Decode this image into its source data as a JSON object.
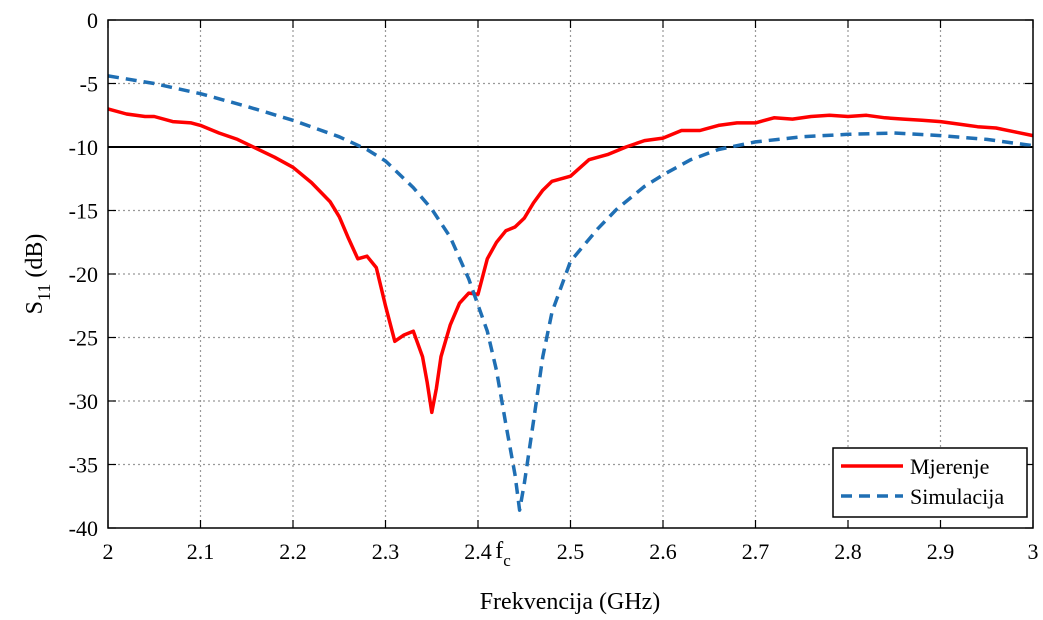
{
  "chart_data": {
    "type": "line",
    "title": "",
    "xlabel": "Frekvencija (GHz)",
    "ylabel_main": "S",
    "ylabel_sub": "11",
    "ylabel_unit": " (dB)",
    "xlim": [
      2,
      3
    ],
    "ylim": [
      -40,
      0
    ],
    "x_ticks": [
      2,
      2.1,
      2.2,
      2.3,
      2.4,
      2.5,
      2.6,
      2.7,
      2.8,
      2.9,
      3
    ],
    "x_tick_labels": [
      "2",
      "2.1",
      "2.2",
      "2.3",
      "2.4",
      "2.5",
      "2.6",
      "2.7",
      "2.8",
      "2.9",
      "3"
    ],
    "y_ticks": [
      0,
      -5,
      -10,
      -15,
      -20,
      -25,
      -30,
      -35,
      -40
    ],
    "y_tick_labels": [
      "0",
      "-5",
      "-10",
      "-15",
      "-20",
      "-25",
      "-30",
      "-35",
      "-40"
    ],
    "grid": true,
    "reference_line": {
      "y": -10,
      "color": "#000000"
    },
    "annotation": {
      "x": 2.445,
      "text_main": "f",
      "text_sub": "c"
    },
    "legend_position": "bottom-right",
    "series": [
      {
        "name": "Mjerenje",
        "color": "#ff0000",
        "style": "solid",
        "x": [
          2.0,
          2.02,
          2.04,
          2.05,
          2.07,
          2.09,
          2.1,
          2.12,
          2.14,
          2.16,
          2.18,
          2.2,
          2.22,
          2.24,
          2.25,
          2.26,
          2.27,
          2.28,
          2.29,
          2.3,
          2.31,
          2.32,
          2.33,
          2.34,
          2.345,
          2.35,
          2.355,
          2.36,
          2.37,
          2.38,
          2.39,
          2.4,
          2.41,
          2.42,
          2.43,
          2.44,
          2.45,
          2.46,
          2.47,
          2.48,
          2.5,
          2.52,
          2.54,
          2.56,
          2.58,
          2.6,
          2.62,
          2.64,
          2.66,
          2.68,
          2.7,
          2.72,
          2.74,
          2.76,
          2.78,
          2.8,
          2.82,
          2.84,
          2.86,
          2.88,
          2.9,
          2.92,
          2.94,
          2.96,
          2.98,
          3.0
        ],
        "y": [
          -7.0,
          -7.4,
          -7.6,
          -7.6,
          -8.0,
          -8.1,
          -8.3,
          -8.9,
          -9.4,
          -10.1,
          -10.8,
          -11.6,
          -12.8,
          -14.3,
          -15.5,
          -17.2,
          -18.8,
          -18.6,
          -19.5,
          -22.5,
          -25.3,
          -24.8,
          -24.5,
          -26.5,
          -28.5,
          -30.9,
          -29.0,
          -26.5,
          -24.0,
          -22.3,
          -21.5,
          -21.6,
          -18.8,
          -17.5,
          -16.6,
          -16.3,
          -15.6,
          -14.4,
          -13.4,
          -12.7,
          -12.3,
          -11.0,
          -10.6,
          -10.0,
          -9.5,
          -9.3,
          -8.7,
          -8.7,
          -8.3,
          -8.1,
          -8.1,
          -7.7,
          -7.8,
          -7.6,
          -7.5,
          -7.6,
          -7.5,
          -7.7,
          -7.8,
          -7.9,
          -8.0,
          -8.2,
          -8.4,
          -8.5,
          -8.8,
          -9.1
        ]
      },
      {
        "name": "Simulacija",
        "color": "#1f6fb4",
        "style": "dashed",
        "x": [
          2.0,
          2.05,
          2.1,
          2.15,
          2.2,
          2.25,
          2.28,
          2.3,
          2.33,
          2.35,
          2.37,
          2.39,
          2.41,
          2.42,
          2.43,
          2.44,
          2.445,
          2.45,
          2.46,
          2.47,
          2.48,
          2.5,
          2.53,
          2.55,
          2.58,
          2.6,
          2.63,
          2.66,
          2.7,
          2.75,
          2.8,
          2.85,
          2.9,
          2.95,
          3.0
        ],
        "y": [
          -4.4,
          -5.0,
          -5.8,
          -6.8,
          -7.9,
          -9.2,
          -10.2,
          -11.1,
          -13.2,
          -14.9,
          -17.1,
          -20.4,
          -24.5,
          -27.6,
          -31.8,
          -35.8,
          -38.6,
          -36.5,
          -31.6,
          -26.5,
          -23.0,
          -19.0,
          -16.4,
          -14.9,
          -13.1,
          -12.2,
          -11.0,
          -10.2,
          -9.6,
          -9.2,
          -9.0,
          -8.9,
          -9.1,
          -9.4,
          -9.9
        ]
      }
    ]
  }
}
